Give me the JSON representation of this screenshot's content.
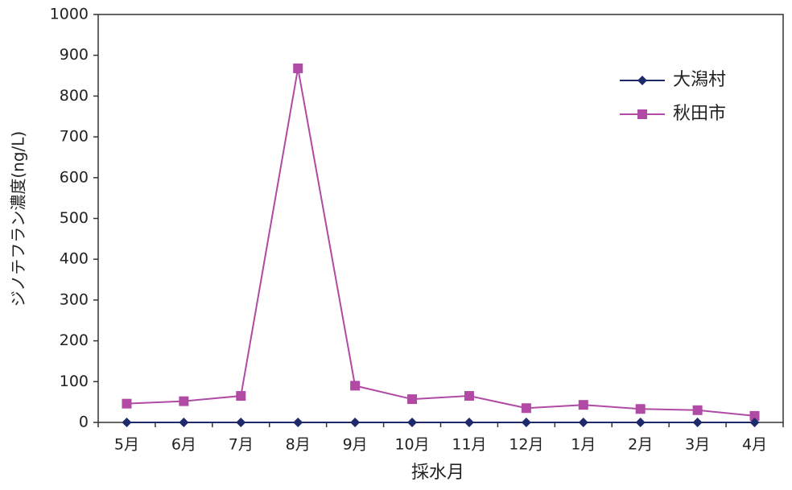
{
  "chart_data": {
    "type": "line",
    "x_label": "採水月",
    "y_label": "ジノテフラン濃度(ng/L)",
    "categories": [
      "5月",
      "6月",
      "7月",
      "8月",
      "9月",
      "10月",
      "11月",
      "12月",
      "1月",
      "2月",
      "3月",
      "4月"
    ],
    "series": [
      {
        "name": "大潟村",
        "color": "#1f2a6b",
        "marker": "diamond",
        "values": [
          0,
          0,
          0,
          0,
          0,
          0,
          0,
          0,
          0,
          0,
          0,
          0
        ]
      },
      {
        "name": "秋田市",
        "color": "#b04aa4",
        "marker": "square",
        "values": [
          46,
          52,
          65,
          868,
          90,
          57,
          65,
          35,
          43,
          33,
          30,
          16
        ]
      }
    ],
    "ylim": [
      0,
      1000
    ],
    "yticks": [
      0,
      100,
      200,
      300,
      400,
      500,
      600,
      700,
      800,
      900,
      1000
    ],
    "legend": "upper right"
  }
}
